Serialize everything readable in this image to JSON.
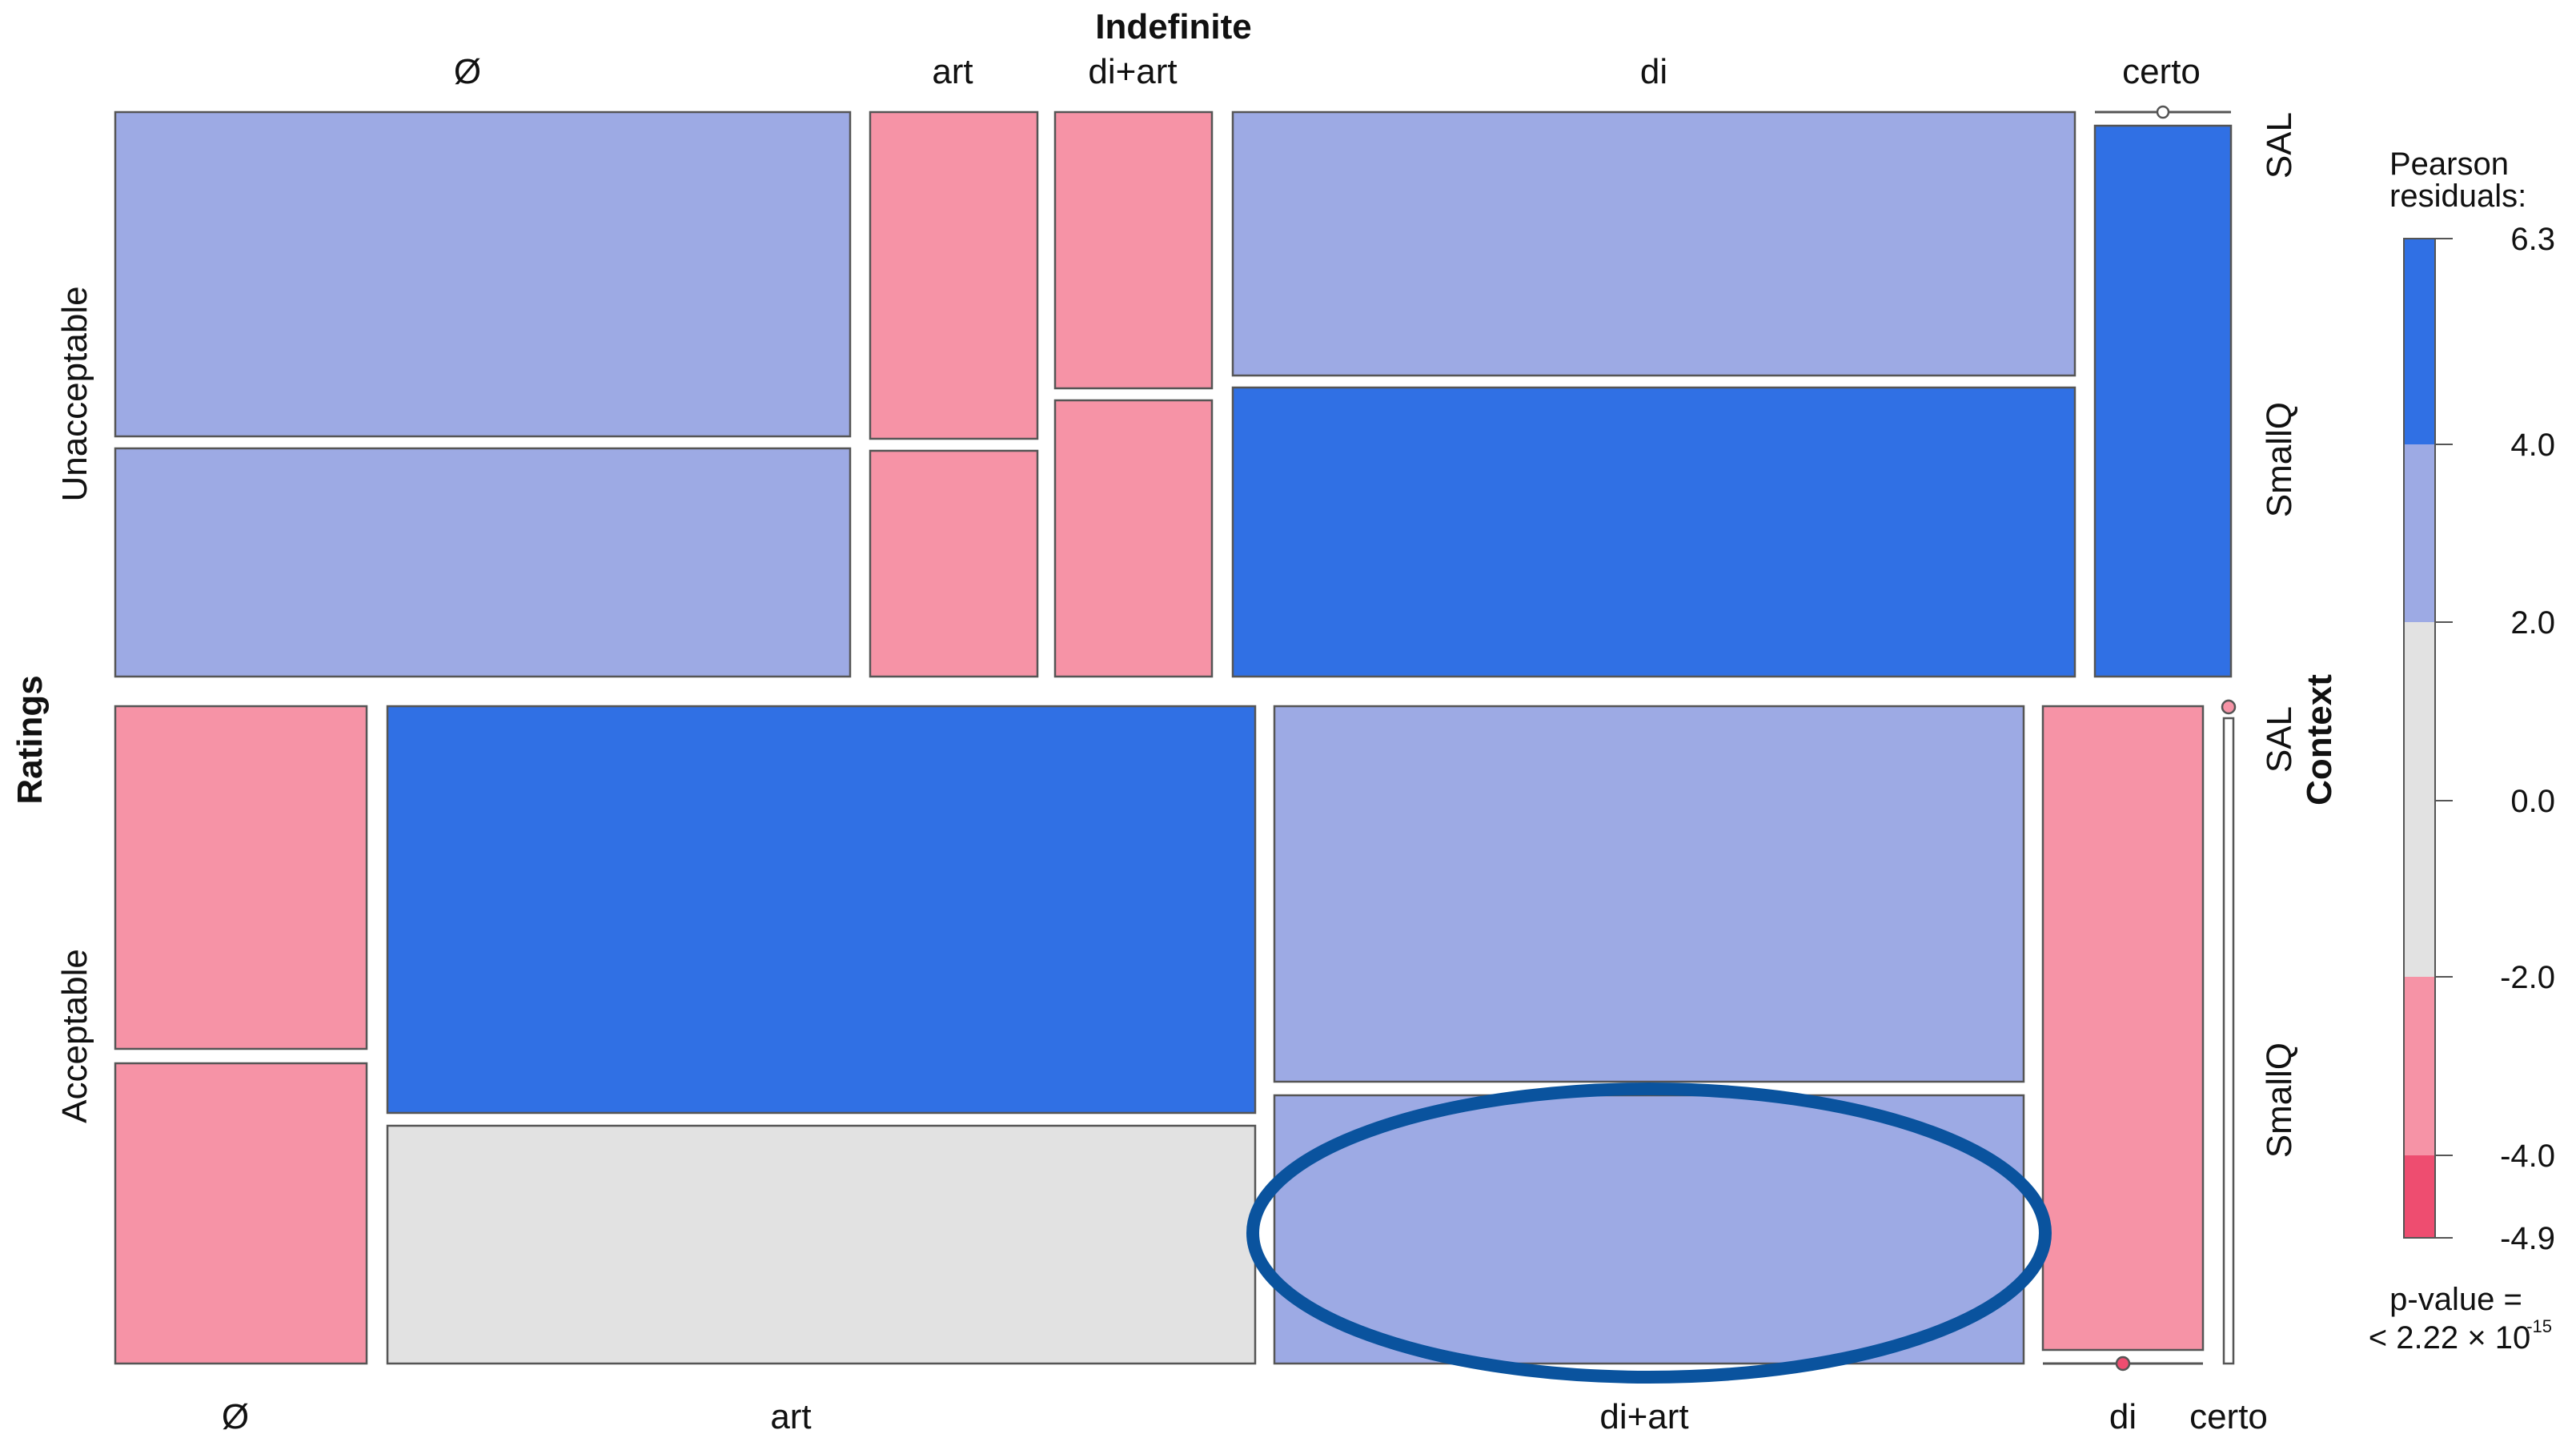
{
  "chart_data": {
    "type": "mosaic",
    "title": "Indefinite",
    "row_variable": "Ratings",
    "split_variable": "Context",
    "rows": [
      {
        "label": "Unacceptable",
        "context_labels": [
          "SAL",
          "SmallQ"
        ],
        "columns": [
          {
            "label": "Ø",
            "cells": [
              {
                "context": "SAL",
                "residual_band": "2.0 to 4.0"
              },
              {
                "context": "SmallQ",
                "residual_band": "2.0 to 4.0"
              }
            ]
          },
          {
            "label": "art",
            "cells": [
              {
                "context": "SAL",
                "residual_band": "-4.0 to -2.0"
              },
              {
                "context": "SmallQ",
                "residual_band": "-4.0 to -2.0"
              }
            ]
          },
          {
            "label": "di+art",
            "cells": [
              {
                "context": "SAL",
                "residual_band": "-4.0 to -2.0"
              },
              {
                "context": "SmallQ",
                "residual_band": "-4.0 to -2.0"
              }
            ]
          },
          {
            "label": "di",
            "cells": [
              {
                "context": "SAL",
                "residual_band": "2.0 to 4.0"
              },
              {
                "context": "SmallQ",
                "residual_band": "4.0 to 6.3"
              }
            ]
          },
          {
            "label": "certo",
            "cells": [
              {
                "context": "SAL",
                "residual_band": "empty"
              },
              {
                "context": "SmallQ",
                "residual_band": "4.0 to 6.3"
              }
            ]
          }
        ]
      },
      {
        "label": "Acceptable",
        "context_labels": [
          "SAL",
          "SmallQ"
        ],
        "columns": [
          {
            "label": "Ø",
            "cells": [
              {
                "context": "SAL",
                "residual_band": "-4.0 to -2.0"
              },
              {
                "context": "SmallQ",
                "residual_band": "-4.0 to -2.0"
              }
            ]
          },
          {
            "label": "art",
            "cells": [
              {
                "context": "SAL",
                "residual_band": "4.0 to 6.3"
              },
              {
                "context": "SmallQ",
                "residual_band": "-2.0 to 2.0"
              }
            ]
          },
          {
            "label": "di+art",
            "cells": [
              {
                "context": "SAL",
                "residual_band": "2.0 to 4.0"
              },
              {
                "context": "SmallQ",
                "residual_band": "2.0 to 4.0"
              }
            ]
          },
          {
            "label": "di",
            "cells": [
              {
                "context": "SAL",
                "residual_band": "-4.0 to -2.0"
              },
              {
                "context": "SmallQ",
                "residual_band": "empty"
              }
            ]
          },
          {
            "label": "certo",
            "cells": [
              {
                "context": "SAL",
                "residual_band": "empty"
              },
              {
                "context": "SmallQ",
                "residual_band": "empty"
              }
            ]
          }
        ]
      }
    ],
    "legend": {
      "title_line1": "Pearson",
      "title_line2": "residuals:",
      "placement": "right",
      "ticks": [
        "6.3",
        "4.0",
        "2.0",
        "0.0",
        "-2.0",
        "-4.0",
        "-4.9"
      ],
      "bands": [
        {
          "from": 4.0,
          "to": 6.3,
          "color": "#3070e4"
        },
        {
          "from": 2.0,
          "to": 4.0,
          "color": "#9daae4"
        },
        {
          "from": -2.0,
          "to": 2.0,
          "color": "#e2e2e2"
        },
        {
          "from": -4.0,
          "to": -2.0,
          "color": "#f693a6"
        },
        {
          "from": -4.9,
          "to": -4.0,
          "color": "#ee4d70"
        }
      ]
    },
    "p_value_line1": "p-value =",
    "p_value_line2": "< 2.22 × 10",
    "p_value_exponent": "-15",
    "highlight": {
      "row": "Acceptable",
      "column": "di+art",
      "context": "SmallQ",
      "shape": "ellipse",
      "color": "#0a539e"
    }
  },
  "colors": {
    "strong_positive": "#3070e4",
    "positive": "#9daae4",
    "neutral": "#e2e2e2",
    "negative": "#f693a6",
    "strong_negative": "#ee4d70",
    "cell_border": "#555555"
  }
}
